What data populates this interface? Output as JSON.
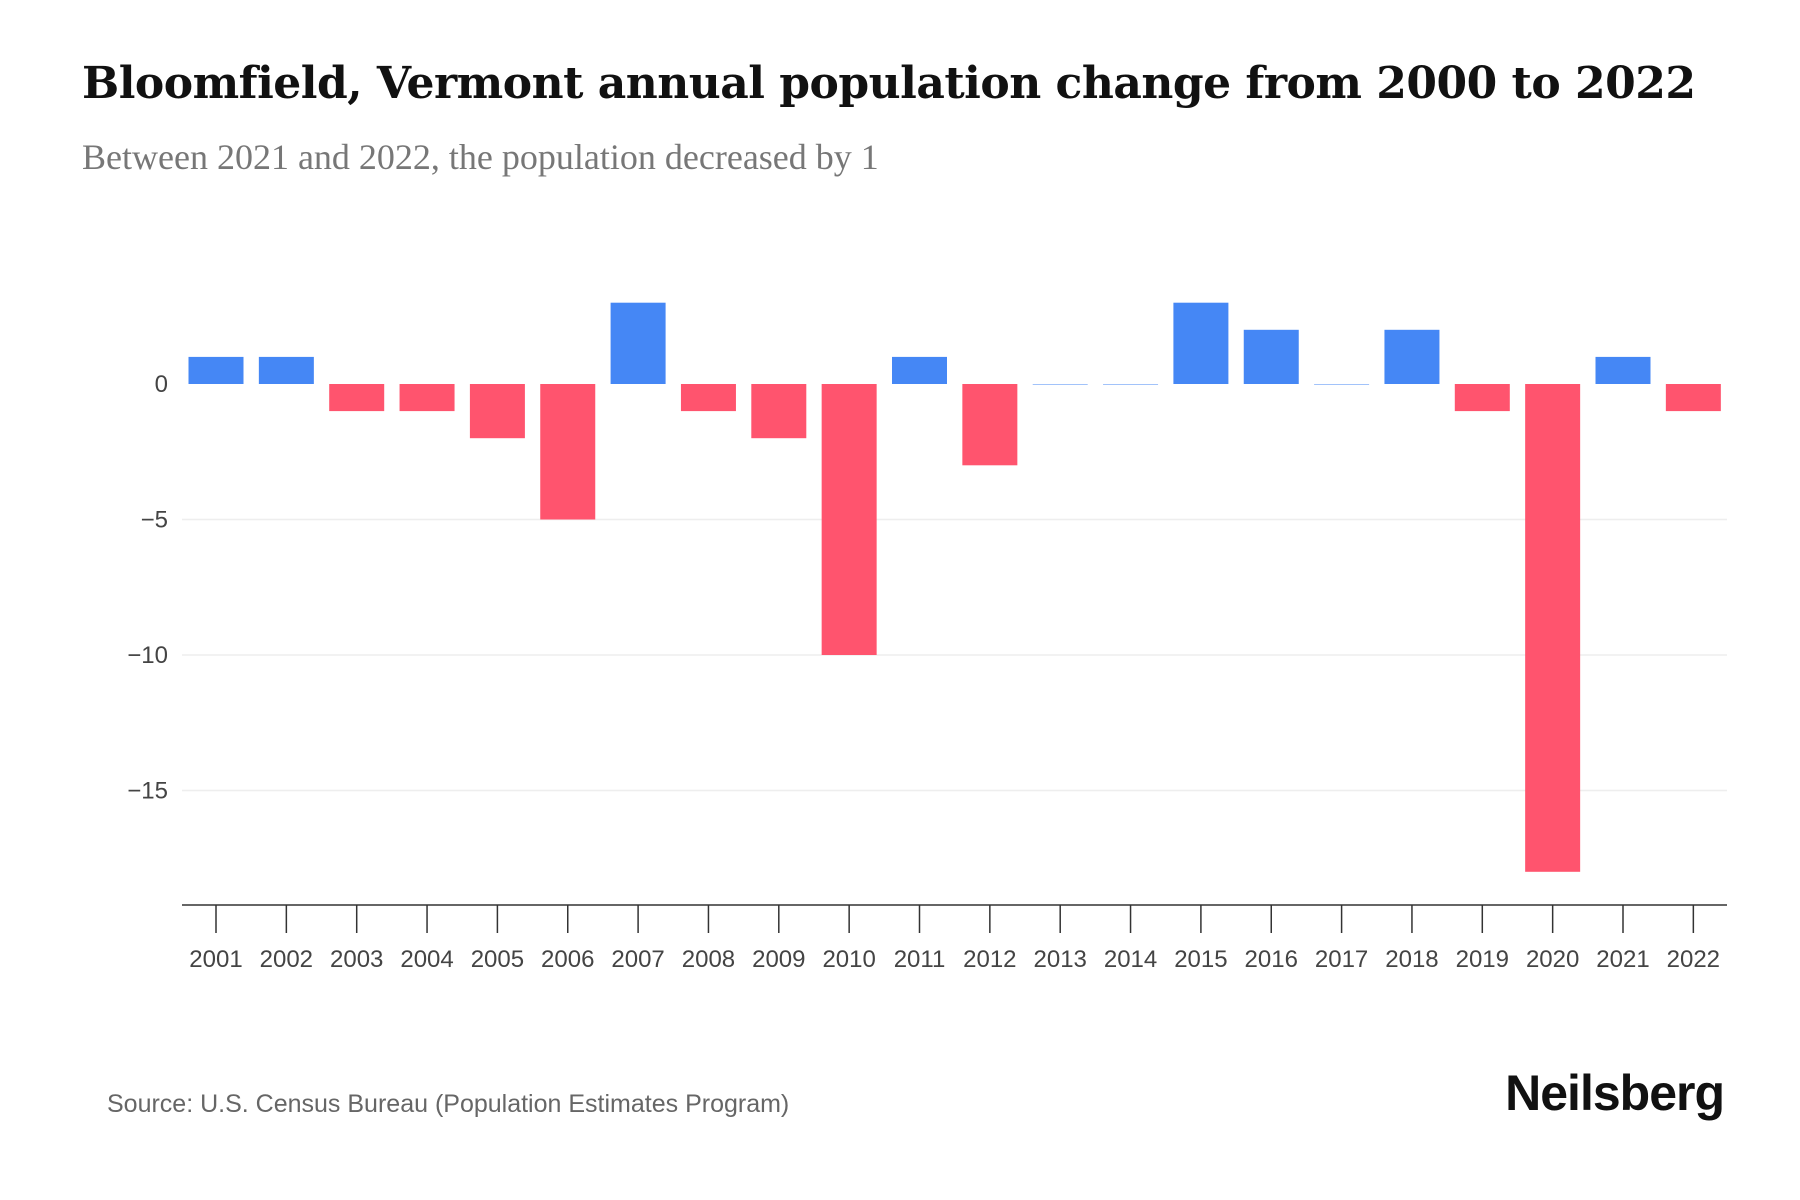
{
  "title": "Bloomfield, Vermont annual population change from 2000 to 2022",
  "subtitle": "Between 2021 and 2022, the population decreased by 1",
  "source": "Source: U.S. Census Bureau (Population Estimates Program)",
  "logo": "Neilsberg",
  "colors": {
    "positive": "#4587f5",
    "negative": "#ff546e"
  },
  "chart_data": {
    "type": "bar",
    "title": "Bloomfield, Vermont annual population change from 2000 to 2022",
    "xlabel": "",
    "ylabel": "",
    "categories": [
      "2001",
      "2002",
      "2003",
      "2004",
      "2005",
      "2006",
      "2007",
      "2008",
      "2009",
      "2010",
      "2011",
      "2012",
      "2013",
      "2014",
      "2015",
      "2016",
      "2017",
      "2018",
      "2019",
      "2020",
      "2021",
      "2022"
    ],
    "values": [
      1,
      1,
      -1,
      -1,
      -2,
      -5,
      3,
      -1,
      -2,
      -10,
      1,
      -3,
      0,
      0,
      3,
      2,
      0,
      2,
      -1,
      -18,
      1,
      -1
    ],
    "yticks": [
      0,
      -5,
      -10,
      -15
    ],
    "ytick_labels": [
      "0",
      "−5",
      "−10",
      "−15"
    ],
    "ylim": [
      -19.3,
      3.5
    ],
    "grid": true
  }
}
